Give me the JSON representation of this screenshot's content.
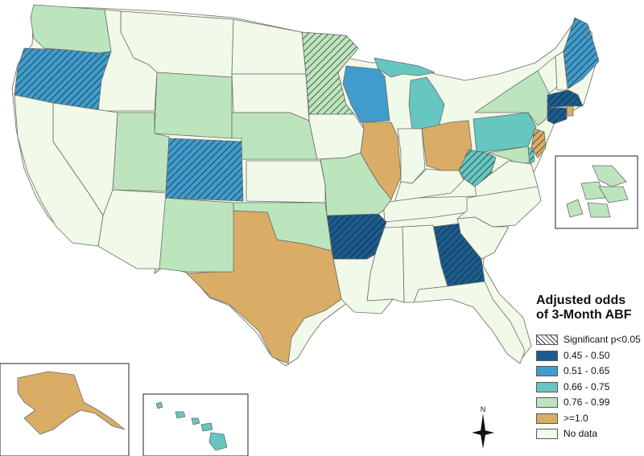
{
  "legend": {
    "title_line1": "Adjusted odds",
    "title_line2": "of 3-Month ABF",
    "items": [
      {
        "label": "Significant p<0.05",
        "color": "#ffffff",
        "hatched": true
      },
      {
        "label": "0.45 - 0.50",
        "color": "#1b5c8e"
      },
      {
        "label": "0.51 - 0.65",
        "color": "#3f9ccd"
      },
      {
        "label": "0.66 - 0.75",
        "color": "#66c6c0"
      },
      {
        "label": "0.76 - 0.99",
        "color": "#bde5bd"
      },
      {
        "label": ">=1.0",
        "color": "#d9ad66"
      },
      {
        "label": "No data",
        "color": "#f1f9e8"
      }
    ]
  },
  "compass": {
    "north_label": "N"
  },
  "map": {
    "colors": {
      "no_data": "#f1f9e8",
      "c076": "#bde5bd",
      "c066": "#66c6c0",
      "c051": "#3f9ccd",
      "c045": "#1b5c8e",
      "ge1": "#d9ad66"
    }
  }
}
